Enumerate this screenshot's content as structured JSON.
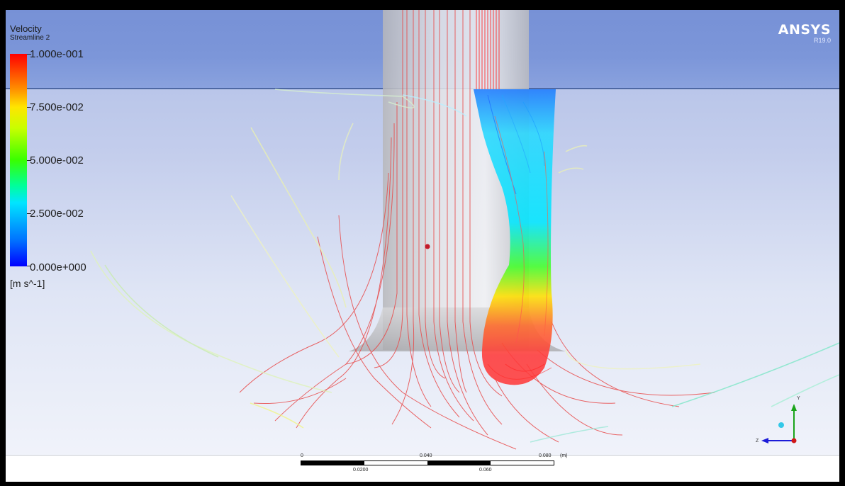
{
  "legend": {
    "title": "Velocity",
    "subtitle": "Streamline 2",
    "labels": [
      "1.000e-001",
      "7.500e-002",
      "5.000e-002",
      "2.500e-002",
      "0.000e+000"
    ],
    "units": "[m s^-1]",
    "colors": [
      "#ff0000",
      "#ffe500",
      "#39ff00",
      "#00e5ff",
      "#0000ff"
    ]
  },
  "logo": {
    "brand": "ANSYS",
    "version": "R19.0"
  },
  "scale_bar": {
    "top_labels": [
      "0",
      "0.040",
      "0.080"
    ],
    "unit": "(m)",
    "bottom_labels": [
      "0.0200",
      "0.060"
    ]
  },
  "triad": {
    "axes": [
      "Y",
      "Z"
    ]
  },
  "colors": {
    "sky": "#7791d6",
    "water_line": "#3f5b98",
    "cylinder": "#c9c9cc"
  }
}
